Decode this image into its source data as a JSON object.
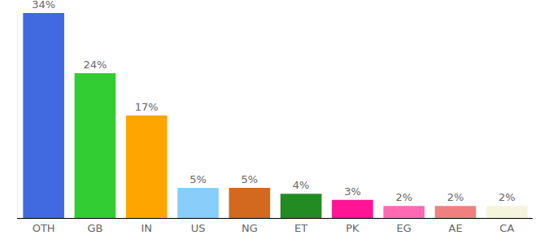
{
  "chart_data": {
    "type": "bar",
    "categories": [
      "OTH",
      "GB",
      "IN",
      "US",
      "NG",
      "ET",
      "PK",
      "EG",
      "AE",
      "CA"
    ],
    "values": [
      34,
      24,
      17,
      5,
      5,
      4,
      3,
      2,
      2,
      2
    ],
    "value_labels": [
      "34%",
      "24%",
      "17%",
      "5%",
      "5%",
      "4%",
      "3%",
      "2%",
      "2%",
      "2%"
    ],
    "colors": [
      "#4169e1",
      "#32cd32",
      "#ffa500",
      "#87cefa",
      "#d2691e",
      "#228b22",
      "#ff1493",
      "#ff69b4",
      "#f08080",
      "#f5f5dc"
    ],
    "ylim": [
      0,
      34
    ],
    "grid": false,
    "data_labels": true,
    "tick_labels": "x"
  }
}
